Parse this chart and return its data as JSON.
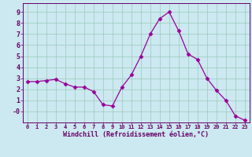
{
  "x": [
    0,
    1,
    2,
    3,
    4,
    5,
    6,
    7,
    8,
    9,
    10,
    11,
    12,
    13,
    14,
    15,
    16,
    17,
    18,
    19,
    20,
    21,
    22,
    23
  ],
  "y": [
    2.7,
    2.7,
    2.8,
    2.9,
    2.5,
    2.2,
    2.2,
    1.8,
    0.6,
    0.5,
    2.2,
    3.3,
    5.0,
    7.0,
    8.4,
    9.0,
    7.3,
    5.2,
    4.7,
    3.0,
    1.9,
    1.0,
    -0.4,
    -0.8
  ],
  "line_color": "#990099",
  "marker": "D",
  "marker_size": 2.5,
  "bg_color": "#cce8f0",
  "grid_color": "#99ccbb",
  "xlabel": "Windchill (Refroidissement éolien,°C)",
  "xlabel_color": "#660066",
  "tick_color": "#660066",
  "ylabel_ticks": [
    0,
    1,
    2,
    3,
    4,
    5,
    6,
    7,
    8,
    9
  ],
  "ylabel_labels": [
    "-0",
    "1",
    "2",
    "3",
    "4",
    "5",
    "6",
    "7",
    "8",
    "9"
  ],
  "xlim": [
    -0.5,
    23.5
  ],
  "ylim": [
    -1.0,
    9.8
  ],
  "xticks": [
    0,
    1,
    2,
    3,
    4,
    5,
    6,
    7,
    8,
    9,
    10,
    11,
    12,
    13,
    14,
    15,
    16,
    17,
    18,
    19,
    20,
    21,
    22,
    23
  ]
}
